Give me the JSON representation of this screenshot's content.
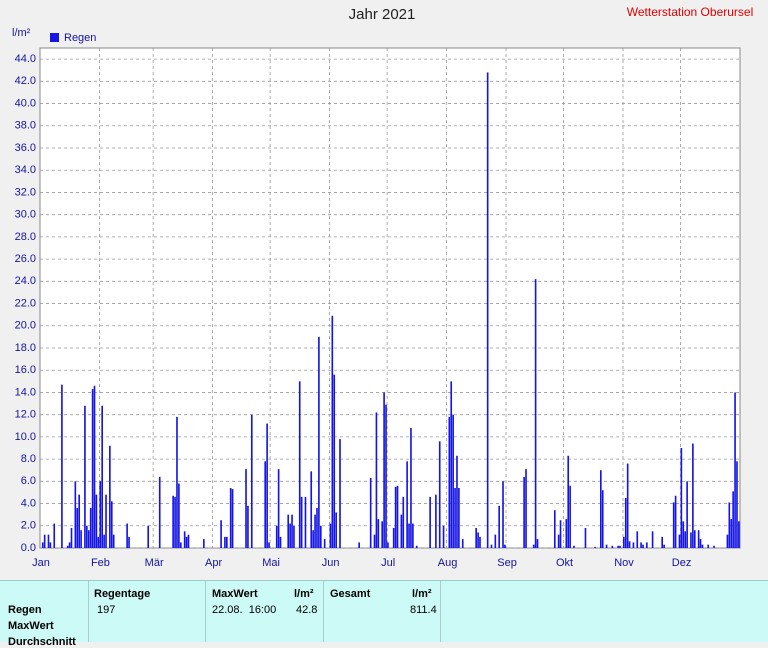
{
  "chart_data": {
    "type": "bar",
    "title": "Jahr 2021",
    "station": "Wetterstation Oberursel",
    "y_unit": "l/m²",
    "series": [
      {
        "name": "Regen",
        "color": "#1414e6",
        "values": [
          0,
          0.5,
          1.2,
          0,
          1.2,
          0.5,
          0,
          2.2,
          0,
          0,
          0,
          14.7,
          0,
          0,
          0.2,
          0.5,
          1.8,
          0,
          6.0,
          3.6,
          4.8,
          1.6,
          0,
          12.8,
          2.0,
          1.6,
          3.6,
          14.3,
          14.6,
          4.8,
          1.0,
          6.0,
          12.8,
          1.2,
          4.8,
          0,
          9.2,
          4.2,
          1.2,
          0,
          0,
          0,
          0,
          0,
          0,
          2.2,
          1.0,
          0,
          0,
          0,
          0,
          0,
          0,
          0,
          0,
          0,
          2.0,
          0,
          0,
          0,
          0,
          0,
          6.4,
          0,
          0,
          0,
          0,
          0,
          0,
          4.7,
          4.6,
          11.8,
          5.8,
          0.5,
          0,
          1.5,
          1.0,
          1.2,
          0,
          0,
          0,
          0,
          0,
          0,
          0,
          0.8,
          0,
          0,
          0,
          0,
          0,
          0,
          0,
          0,
          2.5,
          0,
          1.0,
          1.0,
          0,
          5.4,
          5.3,
          0,
          0,
          0,
          0,
          0,
          0,
          7.1,
          3.8,
          0,
          12.0,
          0,
          0,
          0,
          0,
          0,
          0,
          7.8,
          11.2,
          0.5,
          0,
          0,
          0,
          2.0,
          7.1,
          1.0,
          0,
          0,
          0,
          3.0,
          2.2,
          3.0,
          2.0,
          0,
          0,
          15.0,
          4.6,
          0,
          4.6,
          0,
          0,
          6.9,
          1.6,
          3.0,
          3.6,
          19.0,
          2.0,
          0,
          0.8,
          0,
          0,
          2.2,
          20.9,
          15.6,
          3.2,
          0,
          9.8,
          0,
          0,
          0,
          0,
          0,
          0,
          0,
          0,
          0,
          0.5,
          0,
          0,
          0,
          0,
          0,
          6.3,
          0,
          1.2,
          12.2,
          2.6,
          0,
          2.4,
          14.0,
          12.9,
          0.5,
          0,
          0,
          1.8,
          5.5,
          5.6,
          0,
          3.0,
          4.6,
          0,
          7.8,
          2.2,
          10.8,
          2.2,
          0,
          0.2,
          0,
          0,
          0,
          0,
          0,
          0,
          4.6,
          0,
          0,
          4.8,
          0,
          9.6,
          0,
          2.0,
          0,
          0,
          11.8,
          15.0,
          12.0,
          5.4,
          8.3,
          5.4,
          0,
          0.8,
          0,
          0,
          0,
          0,
          0,
          0,
          1.8,
          1.4,
          1.0,
          0,
          0,
          0,
          42.8,
          0,
          0.3,
          0,
          1.2,
          0,
          3.8,
          0,
          6.0,
          0.3,
          0,
          0,
          0,
          0,
          0,
          0,
          0,
          0,
          0,
          6.4,
          7.1,
          0,
          0,
          0,
          0.3,
          24.2,
          0.8,
          0,
          0,
          0,
          0,
          0,
          0,
          0,
          0,
          3.4,
          0,
          1.2,
          2.5,
          0,
          0,
          2.6,
          8.3,
          5.6,
          0,
          0.2,
          0,
          0,
          0,
          0,
          0,
          1.8,
          0,
          0,
          0,
          0,
          0.1,
          0,
          0,
          7.0,
          5.2,
          0,
          0.3,
          0,
          0,
          0.2,
          0,
          0,
          0.2,
          0.2,
          0,
          1.0,
          4.5,
          7.6,
          0.6,
          0,
          0.5,
          0,
          1.5,
          0,
          0.5,
          0.3,
          0,
          0.5,
          0,
          0,
          1.5,
          0,
          0,
          0,
          0,
          1.0,
          0.3,
          0,
          0,
          0,
          0,
          4.1,
          4.7,
          0,
          1.2,
          9.0,
          2.4,
          1.5,
          6.0,
          0,
          1.4,
          9.4,
          1.6,
          0,
          1.6,
          0.8,
          0.3,
          0,
          0,
          0.3,
          0,
          0,
          0.2,
          0,
          0,
          0,
          0,
          0,
          0,
          1.2,
          4.1,
          2.6,
          5.1,
          14.0,
          7.8,
          2.4
        ]
      }
    ],
    "categories": [
      "Jan",
      null,
      null,
      null,
      null,
      null,
      null,
      null,
      null,
      null,
      null,
      null,
      null,
      null,
      null,
      null,
      null,
      null,
      null,
      null,
      null,
      null,
      null,
      null,
      null,
      null,
      null,
      null,
      null,
      null,
      null,
      "Feb",
      null,
      null,
      null,
      null,
      null,
      null,
      null,
      null,
      null,
      null,
      null,
      null,
      null,
      null,
      null,
      null,
      null,
      null,
      null,
      null,
      null,
      null,
      null,
      null,
      null,
      null,
      null,
      "Mär",
      null,
      null,
      null,
      null,
      null,
      null,
      null,
      null,
      null,
      null,
      null,
      null,
      null,
      null,
      null,
      null,
      null,
      null,
      null,
      null,
      null,
      null,
      null,
      null,
      null,
      null,
      null,
      null,
      null,
      null,
      "Apr",
      null,
      null,
      null,
      null,
      null,
      null,
      null,
      null,
      null,
      null,
      null,
      null,
      null,
      null,
      null,
      null,
      null,
      null,
      null,
      null,
      null,
      null,
      null,
      null,
      null,
      null,
      null,
      null,
      null,
      "Mai",
      null,
      null,
      null,
      null,
      null,
      null,
      null,
      null,
      null,
      null,
      null,
      null,
      null,
      null,
      null,
      null,
      null,
      null,
      null,
      null,
      null,
      null,
      null,
      null,
      null,
      null,
      null,
      null,
      null,
      null,
      "Jun",
      null,
      null,
      null,
      null,
      null,
      null,
      null,
      null,
      null,
      null,
      null,
      null,
      null,
      null,
      null,
      null,
      null,
      null,
      null,
      null,
      null,
      null,
      null,
      null,
      null,
      null,
      null,
      null,
      null,
      "Jul",
      null,
      null,
      null,
      null,
      null,
      null,
      null,
      null,
      null,
      null,
      null,
      null,
      null,
      null,
      null,
      null,
      null,
      null,
      null,
      null,
      null,
      null,
      null,
      null,
      null,
      null,
      null,
      null,
      null,
      null,
      "Aug",
      null,
      null,
      null,
      null,
      null,
      null,
      null,
      null,
      null,
      null,
      null,
      null,
      null,
      null,
      null,
      null,
      null,
      null,
      null,
      null,
      null,
      null,
      null,
      null,
      null,
      null,
      null,
      null,
      null,
      null,
      "Sep",
      null,
      null,
      null,
      null,
      null,
      null,
      null,
      null,
      null,
      null,
      null,
      null,
      null,
      null,
      null,
      null,
      null,
      null,
      null,
      null,
      null,
      null,
      null,
      null,
      null,
      null,
      null,
      null,
      null,
      "Okt",
      null,
      null,
      null,
      null,
      null,
      null,
      null,
      null,
      null,
      null,
      null,
      null,
      null,
      null,
      null,
      null,
      null,
      null,
      null,
      null,
      null,
      null,
      null,
      null,
      null,
      null,
      null,
      null,
      null,
      null,
      "Nov",
      null,
      null,
      null,
      null,
      null,
      null,
      null,
      null,
      null,
      null,
      null,
      null,
      null,
      null,
      null,
      null,
      null,
      null,
      null,
      null,
      null,
      null,
      null,
      null,
      null,
      null,
      null,
      null,
      null,
      "Dez",
      null,
      null,
      null,
      null,
      null,
      null,
      null,
      null,
      null,
      null,
      null,
      null,
      null,
      null,
      null,
      null,
      null,
      null,
      null,
      null,
      null,
      null,
      null,
      null,
      null,
      null,
      null,
      null,
      null,
      null
    ],
    "ylim": [
      0,
      45
    ],
    "yticks": [
      {
        "value": 0,
        "label": "0.0"
      },
      {
        "value": 2,
        "label": "2.0"
      },
      {
        "value": 4,
        "label": "4.0"
      },
      {
        "value": 6,
        "label": "6.0"
      },
      {
        "value": 8,
        "label": "8.0"
      },
      {
        "value": 10,
        "label": "10.0"
      },
      {
        "value": 12,
        "label": "12.0"
      },
      {
        "value": 14,
        "label": "14.0"
      },
      {
        "value": 16,
        "label": "16.0"
      },
      {
        "value": 18,
        "label": "18.0"
      },
      {
        "value": 20,
        "label": "20.0"
      },
      {
        "value": 22,
        "label": "22.0"
      },
      {
        "value": 24,
        "label": "24.0"
      },
      {
        "value": 26,
        "label": "26.0"
      },
      {
        "value": 28,
        "label": "28.0"
      },
      {
        "value": 30,
        "label": "30.0"
      },
      {
        "value": 32,
        "label": "32.0"
      },
      {
        "value": 34,
        "label": "34.0"
      },
      {
        "value": 36,
        "label": "36.0"
      },
      {
        "value": 38,
        "label": "38.0"
      },
      {
        "value": 40,
        "label": "40.0"
      },
      {
        "value": 42,
        "label": "42.0"
      },
      {
        "value": 44,
        "label": "44.0"
      }
    ],
    "grid": true,
    "legend": "top-left"
  },
  "table": {
    "header": [
      "Regentage",
      "MaxWert",
      "l/m²",
      "Gesamt",
      "l/m²"
    ],
    "row_labels": [
      "Regen",
      "MaxWert",
      "Durchschnitt"
    ],
    "rows": [
      [
        197,
        "22.08.  16:00",
        42.8,
        811.4
      ]
    ]
  }
}
